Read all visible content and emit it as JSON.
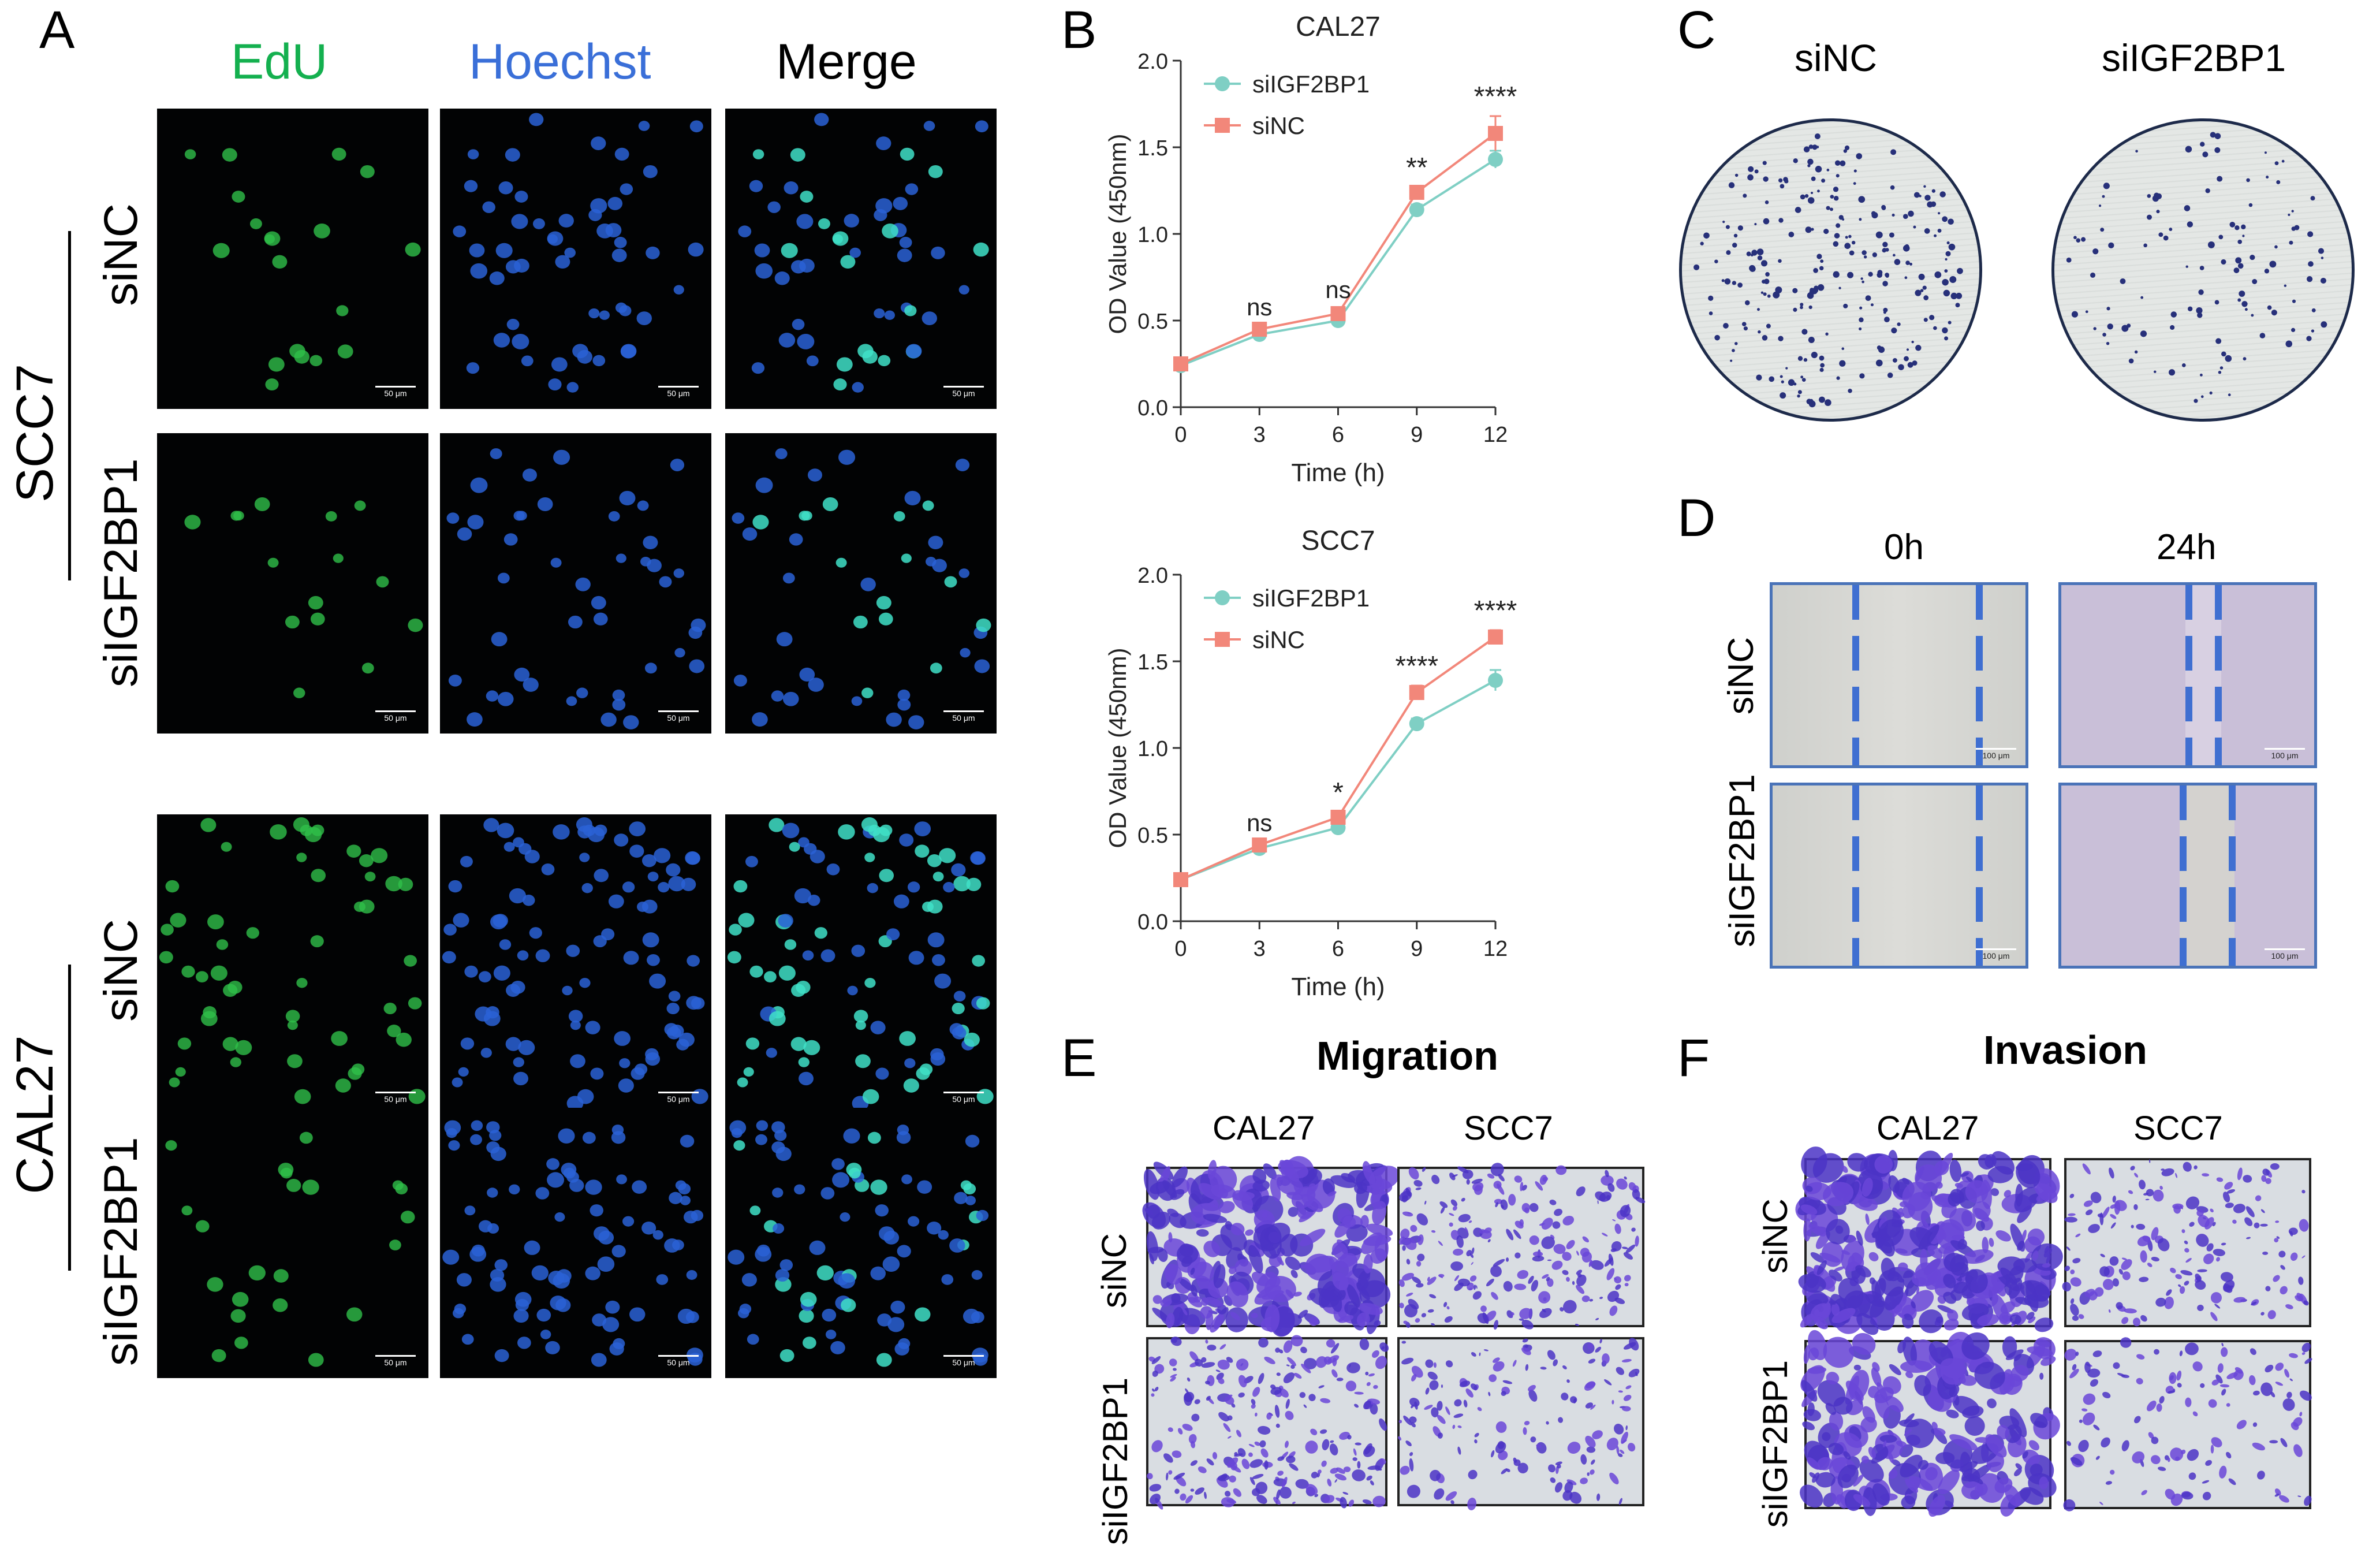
{
  "panels": {
    "A": {
      "letter": "A",
      "col_headers": [
        "EdU",
        "Hoechst",
        "Merge"
      ],
      "col_colors": [
        "#14b04f",
        "#3a6fd8",
        "#000000"
      ],
      "groups": [
        {
          "cell_line": "SCC7",
          "rows": [
            "siNC",
            "siIGF2BP1"
          ]
        },
        {
          "cell_line": "CAL27",
          "rows": [
            "siNC",
            "siIGF2BP1"
          ]
        }
      ],
      "scale_label": "50 μm"
    },
    "B": {
      "letter": "B"
    },
    "C": {
      "letter": "C",
      "labels": [
        "siNC",
        "siIGF2BP1"
      ]
    },
    "D": {
      "letter": "D",
      "col_headers": [
        "0h",
        "24h"
      ],
      "rows": [
        "siNC",
        "siIGF2BP1"
      ],
      "scale_label": "100 μm"
    },
    "E": {
      "letter": "E",
      "title": "Migration",
      "col_headers": [
        "CAL27",
        "SCC7"
      ],
      "rows": [
        "siNC",
        "siIGF2BP1"
      ]
    },
    "F": {
      "letter": "F",
      "title": "Invasion",
      "col_headers": [
        "CAL27",
        "SCC7"
      ],
      "rows": [
        "siNC",
        "siIGF2BP1"
      ]
    }
  },
  "chart_data": [
    {
      "type": "line",
      "title": "CAL27",
      "xlabel": "Time (h)",
      "ylabel": "OD Value (450nm)",
      "x": [
        0,
        3,
        6,
        9,
        12
      ],
      "xlim": [
        0,
        12
      ],
      "ylim": [
        0,
        2.0
      ],
      "yticks": [
        "0.0",
        "0.5",
        "1.0",
        "1.5",
        "2.0"
      ],
      "xticks": [
        "0",
        "3",
        "6",
        "9",
        "12"
      ],
      "legend_position": "top-left",
      "series": [
        {
          "name": "siIGF2BP1",
          "color": "#7fcfc4",
          "marker": "circle",
          "values": [
            0.24,
            0.42,
            0.5,
            1.14,
            1.43
          ],
          "errors": [
            0.02,
            0.03,
            0.03,
            0.03,
            0.05
          ]
        },
        {
          "name": "siNC",
          "color": "#f2877a",
          "marker": "square",
          "values": [
            0.25,
            0.45,
            0.54,
            1.24,
            1.58
          ],
          "errors": [
            0.02,
            0.02,
            0.03,
            0.03,
            0.1
          ]
        }
      ],
      "significance": [
        "",
        "ns",
        "ns",
        "**",
        "****"
      ]
    },
    {
      "type": "line",
      "title": "SCC7",
      "xlabel": "Time (h)",
      "ylabel": "OD Value (450nm)",
      "x": [
        0,
        3,
        6,
        9,
        12
      ],
      "xlim": [
        0,
        12
      ],
      "ylim": [
        0,
        2.0
      ],
      "yticks": [
        "0.0",
        "0.5",
        "1.0",
        "1.5",
        "2.0"
      ],
      "xticks": [
        "0",
        "3",
        "6",
        "9",
        "12"
      ],
      "legend_position": "top-left",
      "series": [
        {
          "name": "siIGF2BP1",
          "color": "#7fcfc4",
          "marker": "circle",
          "values": [
            0.24,
            0.42,
            0.54,
            1.14,
            1.39
          ],
          "errors": [
            0.02,
            0.02,
            0.03,
            0.03,
            0.06
          ]
        },
        {
          "name": "siNC",
          "color": "#f2877a",
          "marker": "square",
          "values": [
            0.24,
            0.44,
            0.6,
            1.32,
            1.64
          ],
          "errors": [
            0.02,
            0.02,
            0.03,
            0.04,
            0.04
          ]
        }
      ],
      "significance": [
        "",
        "ns",
        "*",
        "****",
        "****"
      ]
    }
  ]
}
